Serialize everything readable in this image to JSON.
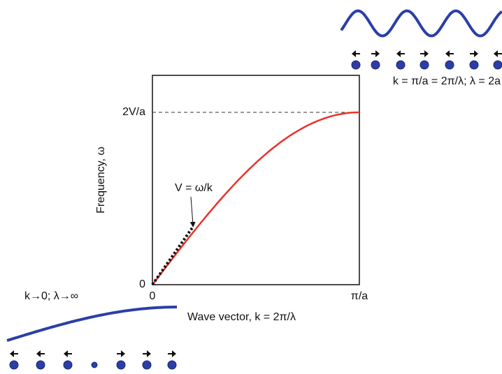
{
  "axes": {
    "y_max_label": "2V/a",
    "y_origin_label": "0",
    "x_origin_label": "0",
    "x_max_label": "π/a",
    "y_title": "Frequency, ω",
    "x_title": "Wave vector, k = 2π/λ"
  },
  "annotations": {
    "slope": "V = ω/k",
    "short_wave": "k = π/a = 2π/λ; λ = 2a",
    "long_wave": "k→0; λ→∞"
  }
}
